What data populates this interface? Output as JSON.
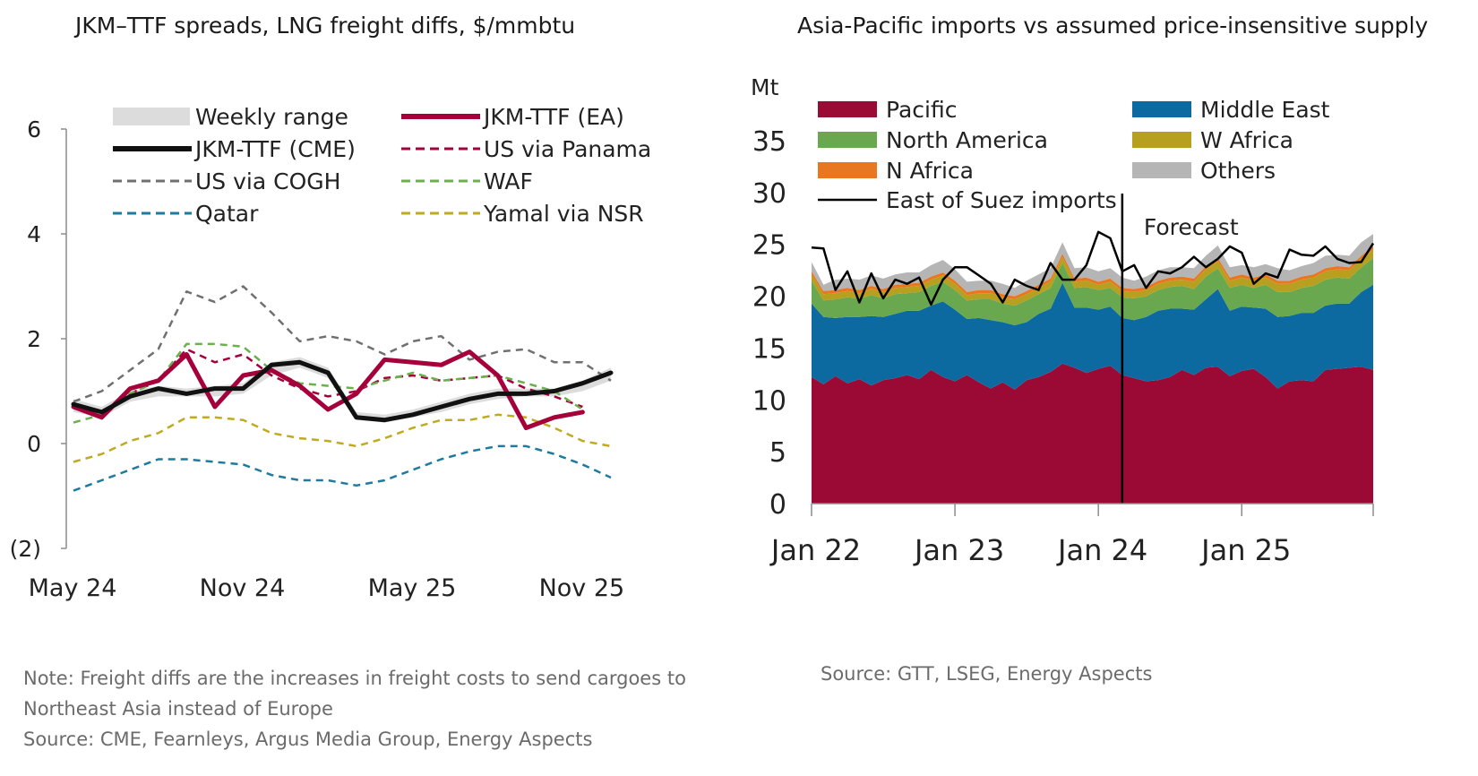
{
  "left": {
    "title": "JKM–TTF spreads, LNG freight diffs, $/mmbtu",
    "note_lines": [
      "Note: Freight diffs are the increases in freight costs to send cargoes to",
      "Northeast Asia instead of Europe",
      "Source: CME, Fearnleys, Argus Media Group, Energy Aspects"
    ]
  },
  "right": {
    "title": "Asia-Pacific imports vs assumed price-insensitive supply",
    "source": "Source: GTT, LSEG, Energy Aspects"
  },
  "chart_data": [
    {
      "type": "line",
      "title": "JKM–TTF spreads, LNG freight diffs, $/mmbtu",
      "ylim": [
        -2,
        6
      ],
      "yticks": [
        6,
        4,
        2,
        0,
        -2
      ],
      "ytick_labels": [
        "6",
        "4",
        "2",
        "0",
        "(2)"
      ],
      "x_tick_labels": [
        "May 24",
        "Nov 24",
        "May 25",
        "Nov 25"
      ],
      "x_tick_index": [
        0,
        6,
        12,
        18
      ],
      "n_points": 20,
      "legend_placement": "top",
      "band": {
        "name": "Weekly range",
        "color": "#dcdcdc",
        "low": [
          0.6,
          0.5,
          0.8,
          0.9,
          0.9,
          0.9,
          0.95,
          1.3,
          1.45,
          1.25,
          0.45,
          0.4,
          0.5,
          0.6,
          0.75,
          0.85,
          0.9,
          0.9,
          1.0,
          1.2
        ],
        "high": [
          0.85,
          0.7,
          1.0,
          1.1,
          1.05,
          1.1,
          1.15,
          1.55,
          1.65,
          1.45,
          0.6,
          0.55,
          0.65,
          0.8,
          0.95,
          1.05,
          1.05,
          1.05,
          1.2,
          1.45
        ]
      },
      "series": [
        {
          "name": "JKM-TTF (EA)",
          "color": "#a5003c",
          "dash": "solid",
          "width": 5,
          "values": [
            0.7,
            0.5,
            1.05,
            1.2,
            1.7,
            0.7,
            1.3,
            1.4,
            1.1,
            0.65,
            0.95,
            1.6,
            1.55,
            1.5,
            1.75,
            1.3,
            0.3,
            0.5,
            0.6,
            null
          ]
        },
        {
          "name": "JKM-TTF (CME)",
          "color": "#111111",
          "dash": "solid",
          "width": 5,
          "values": [
            0.75,
            0.6,
            0.9,
            1.05,
            0.95,
            1.05,
            1.05,
            1.5,
            1.55,
            1.35,
            0.5,
            0.45,
            0.55,
            0.7,
            0.85,
            0.95,
            0.95,
            1.0,
            1.15,
            1.35
          ]
        },
        {
          "name": "US via Panama",
          "color": "#a5003c",
          "dash": "dashed",
          "width": 2.5,
          "values": [
            0.7,
            0.6,
            0.95,
            1.2,
            1.8,
            1.55,
            1.7,
            1.3,
            1.05,
            0.9,
            1.0,
            1.25,
            1.3,
            1.2,
            1.25,
            1.3,
            1.05,
            0.9,
            0.7,
            null
          ]
        },
        {
          "name": "US via COGH",
          "color": "#707070",
          "dash": "dashed",
          "width": 2.5,
          "values": [
            0.8,
            1.0,
            1.4,
            1.8,
            2.9,
            2.7,
            3.0,
            2.5,
            1.95,
            2.05,
            1.95,
            1.7,
            1.95,
            2.05,
            1.6,
            1.75,
            1.8,
            1.55,
            1.55,
            1.2
          ]
        },
        {
          "name": "WAF",
          "color": "#6ab04c",
          "dash": "dashed",
          "width": 2.5,
          "values": [
            0.4,
            0.55,
            0.95,
            1.2,
            1.9,
            1.9,
            1.85,
            1.4,
            1.15,
            1.1,
            1.05,
            1.2,
            1.35,
            1.2,
            1.25,
            1.3,
            1.15,
            1.0,
            0.65,
            null
          ]
        },
        {
          "name": "Qatar",
          "color": "#1e7ba0",
          "dash": "dashed",
          "width": 2.5,
          "values": [
            -0.9,
            -0.7,
            -0.5,
            -0.3,
            -0.3,
            -0.35,
            -0.4,
            -0.6,
            -0.7,
            -0.7,
            -0.8,
            -0.7,
            -0.5,
            -0.3,
            -0.15,
            -0.05,
            -0.05,
            -0.2,
            -0.4,
            -0.65
          ]
        },
        {
          "name": "Yamal via NSR",
          "color": "#c0aa20",
          "dash": "dashed",
          "width": 2.5,
          "values": [
            -0.35,
            -0.2,
            0.05,
            0.2,
            0.5,
            0.5,
            0.45,
            0.2,
            0.1,
            0.05,
            -0.05,
            0.1,
            0.3,
            0.45,
            0.45,
            0.55,
            0.5,
            0.3,
            0.05,
            -0.05
          ]
        }
      ],
      "legend_order": [
        "Weekly range",
        "JKM-TTF (EA)",
        "JKM-TTF (CME)",
        "US via Panama",
        "US via COGH",
        "WAF",
        "Qatar",
        "Yamal via NSR"
      ]
    },
    {
      "type": "area",
      "title": "Asia-Pacific imports vs assumed price-insensitive supply",
      "ylabel": "Mt",
      "ylim": [
        0,
        35
      ],
      "yticks": [
        0,
        5,
        10,
        15,
        20,
        25,
        30,
        35
      ],
      "x_tick_labels": [
        "Jan 22",
        "Jan 23",
        "Jan 24",
        "Jan 25"
      ],
      "x_tick_month": [
        0,
        12,
        24,
        36
      ],
      "months": 48,
      "forecast_start_month": 26,
      "forecast_label": "Forecast",
      "legend_placement": "top",
      "stacked_series": [
        {
          "name": "Pacific",
          "color": "#9b0a35",
          "values": [
            12.2,
            11.5,
            12.3,
            11.6,
            12.0,
            11.4,
            11.9,
            12.1,
            12.4,
            12.0,
            12.9,
            12.2,
            11.8,
            12.4,
            11.7,
            11.1,
            11.7,
            11.0,
            11.9,
            12.2,
            12.7,
            13.5,
            13.1,
            12.6,
            13.0,
            13.3,
            12.4,
            12.1,
            11.8,
            11.9,
            12.2,
            12.9,
            12.4,
            13.1,
            13.2,
            12.3,
            12.8,
            13.0,
            12.2,
            11.1,
            11.8,
            11.9,
            11.8,
            12.9,
            13.0,
            13.1,
            13.2,
            12.9
          ]
        },
        {
          "name": "Middle East",
          "color": "#0d6aa0",
          "values": [
            7.1,
            6.5,
            5.6,
            6.4,
            6.0,
            6.7,
            6.1,
            6.2,
            6.2,
            6.6,
            6.2,
            7.3,
            6.9,
            5.4,
            6.2,
            6.6,
            5.8,
            6.2,
            5.6,
            6.1,
            6.1,
            7.8,
            5.8,
            6.3,
            5.7,
            5.7,
            5.5,
            5.6,
            6.2,
            6.7,
            6.6,
            5.9,
            6.3,
            6.6,
            7.5,
            6.3,
            6.2,
            5.9,
            6.6,
            6.9,
            6.3,
            6.5,
            6.6,
            6.2,
            6.3,
            6.2,
            7.2,
            8.2
          ]
        },
        {
          "name": "North America",
          "color": "#6aa84f",
          "values": [
            2.2,
            1.6,
            1.8,
            1.9,
            1.8,
            2.0,
            1.8,
            1.9,
            1.7,
            1.8,
            1.9,
            1.9,
            1.9,
            1.8,
            1.8,
            2.0,
            1.8,
            1.9,
            2.1,
            1.9,
            2.0,
            1.9,
            1.9,
            2.0,
            1.9,
            1.8,
            2.0,
            2.1,
            2.0,
            2.0,
            2.1,
            2.2,
            2.0,
            2.2,
            2.0,
            2.2,
            2.1,
            1.9,
            2.3,
            2.4,
            2.3,
            2.4,
            2.6,
            2.5,
            2.5,
            2.4,
            2.4,
            2.6
          ]
        },
        {
          "name": "W Africa",
          "color": "#b7a01f",
          "values": [
            0.6,
            0.6,
            0.6,
            0.6,
            0.5,
            0.6,
            0.6,
            0.6,
            0.6,
            0.6,
            0.6,
            0.6,
            0.6,
            0.5,
            0.6,
            0.6,
            0.6,
            0.6,
            0.6,
            0.6,
            0.6,
            0.6,
            0.6,
            0.6,
            0.5,
            0.6,
            0.6,
            0.6,
            0.6,
            0.6,
            0.6,
            0.6,
            0.7,
            0.7,
            0.7,
            0.7,
            0.7,
            0.7,
            0.7,
            0.8,
            0.8,
            0.8,
            0.8,
            0.8,
            0.8,
            0.8,
            0.8,
            0.8
          ]
        },
        {
          "name": "N Africa",
          "color": "#e87722",
          "values": [
            0.3,
            0.3,
            0.3,
            0.3,
            0.3,
            0.3,
            0.3,
            0.3,
            0.3,
            0.3,
            0.3,
            0.3,
            0.3,
            0.3,
            0.3,
            0.3,
            0.3,
            0.3,
            0.3,
            0.3,
            0.3,
            0.3,
            0.3,
            0.3,
            0.3,
            0.3,
            0.3,
            0.3,
            0.3,
            0.3,
            0.3,
            0.3,
            0.3,
            0.3,
            0.3,
            0.3,
            0.3,
            0.3,
            0.3,
            0.3,
            0.3,
            0.3,
            0.3,
            0.3,
            0.3,
            0.3,
            0.3,
            0.3
          ]
        },
        {
          "name": "Others",
          "color": "#b5b5b5",
          "values": [
            0.9,
            0.6,
            1.0,
            0.9,
            1.0,
            1.0,
            1.0,
            1.0,
            1.1,
            1.0,
            1.1,
            1.2,
            1.1,
            1.0,
            0.9,
            0.9,
            1.0,
            0.8,
            1.0,
            1.0,
            1.0,
            1.1,
            1.0,
            1.0,
            1.0,
            1.0,
            1.0,
            0.8,
            1.0,
            1.0,
            1.0,
            0.9,
            1.0,
            1.0,
            1.2,
            1.0,
            0.9,
            1.0,
            1.0,
            1.2,
            1.0,
            1.0,
            1.1,
            1.2,
            1.1,
            1.1,
            1.3,
            1.2
          ]
        }
      ],
      "line_series": {
        "name": "East of Suez imports",
        "color": "#000000",
        "values": [
          24.7,
          24.6,
          20.6,
          22.4,
          19.4,
          22.2,
          19.8,
          21.6,
          21.2,
          21.8,
          19.2,
          21.6,
          22.8,
          22.8,
          22.0,
          21.2,
          19.4,
          21.6,
          21.0,
          20.6,
          23.2,
          21.6,
          21.6,
          23.0,
          26.2,
          25.6,
          22.4,
          23.0,
          20.8,
          22.4,
          22.2,
          22.8,
          23.8,
          22.8,
          23.6,
          24.8,
          24.2,
          21.2,
          22.2,
          21.8,
          24.5,
          24.0,
          23.9,
          24.8,
          23.6,
          23.2,
          23.3,
          25.1
        ]
      },
      "legend_order": [
        "Pacific",
        "Middle East",
        "North America",
        "W Africa",
        "N Africa",
        "Others",
        "East of Suez imports"
      ]
    }
  ]
}
